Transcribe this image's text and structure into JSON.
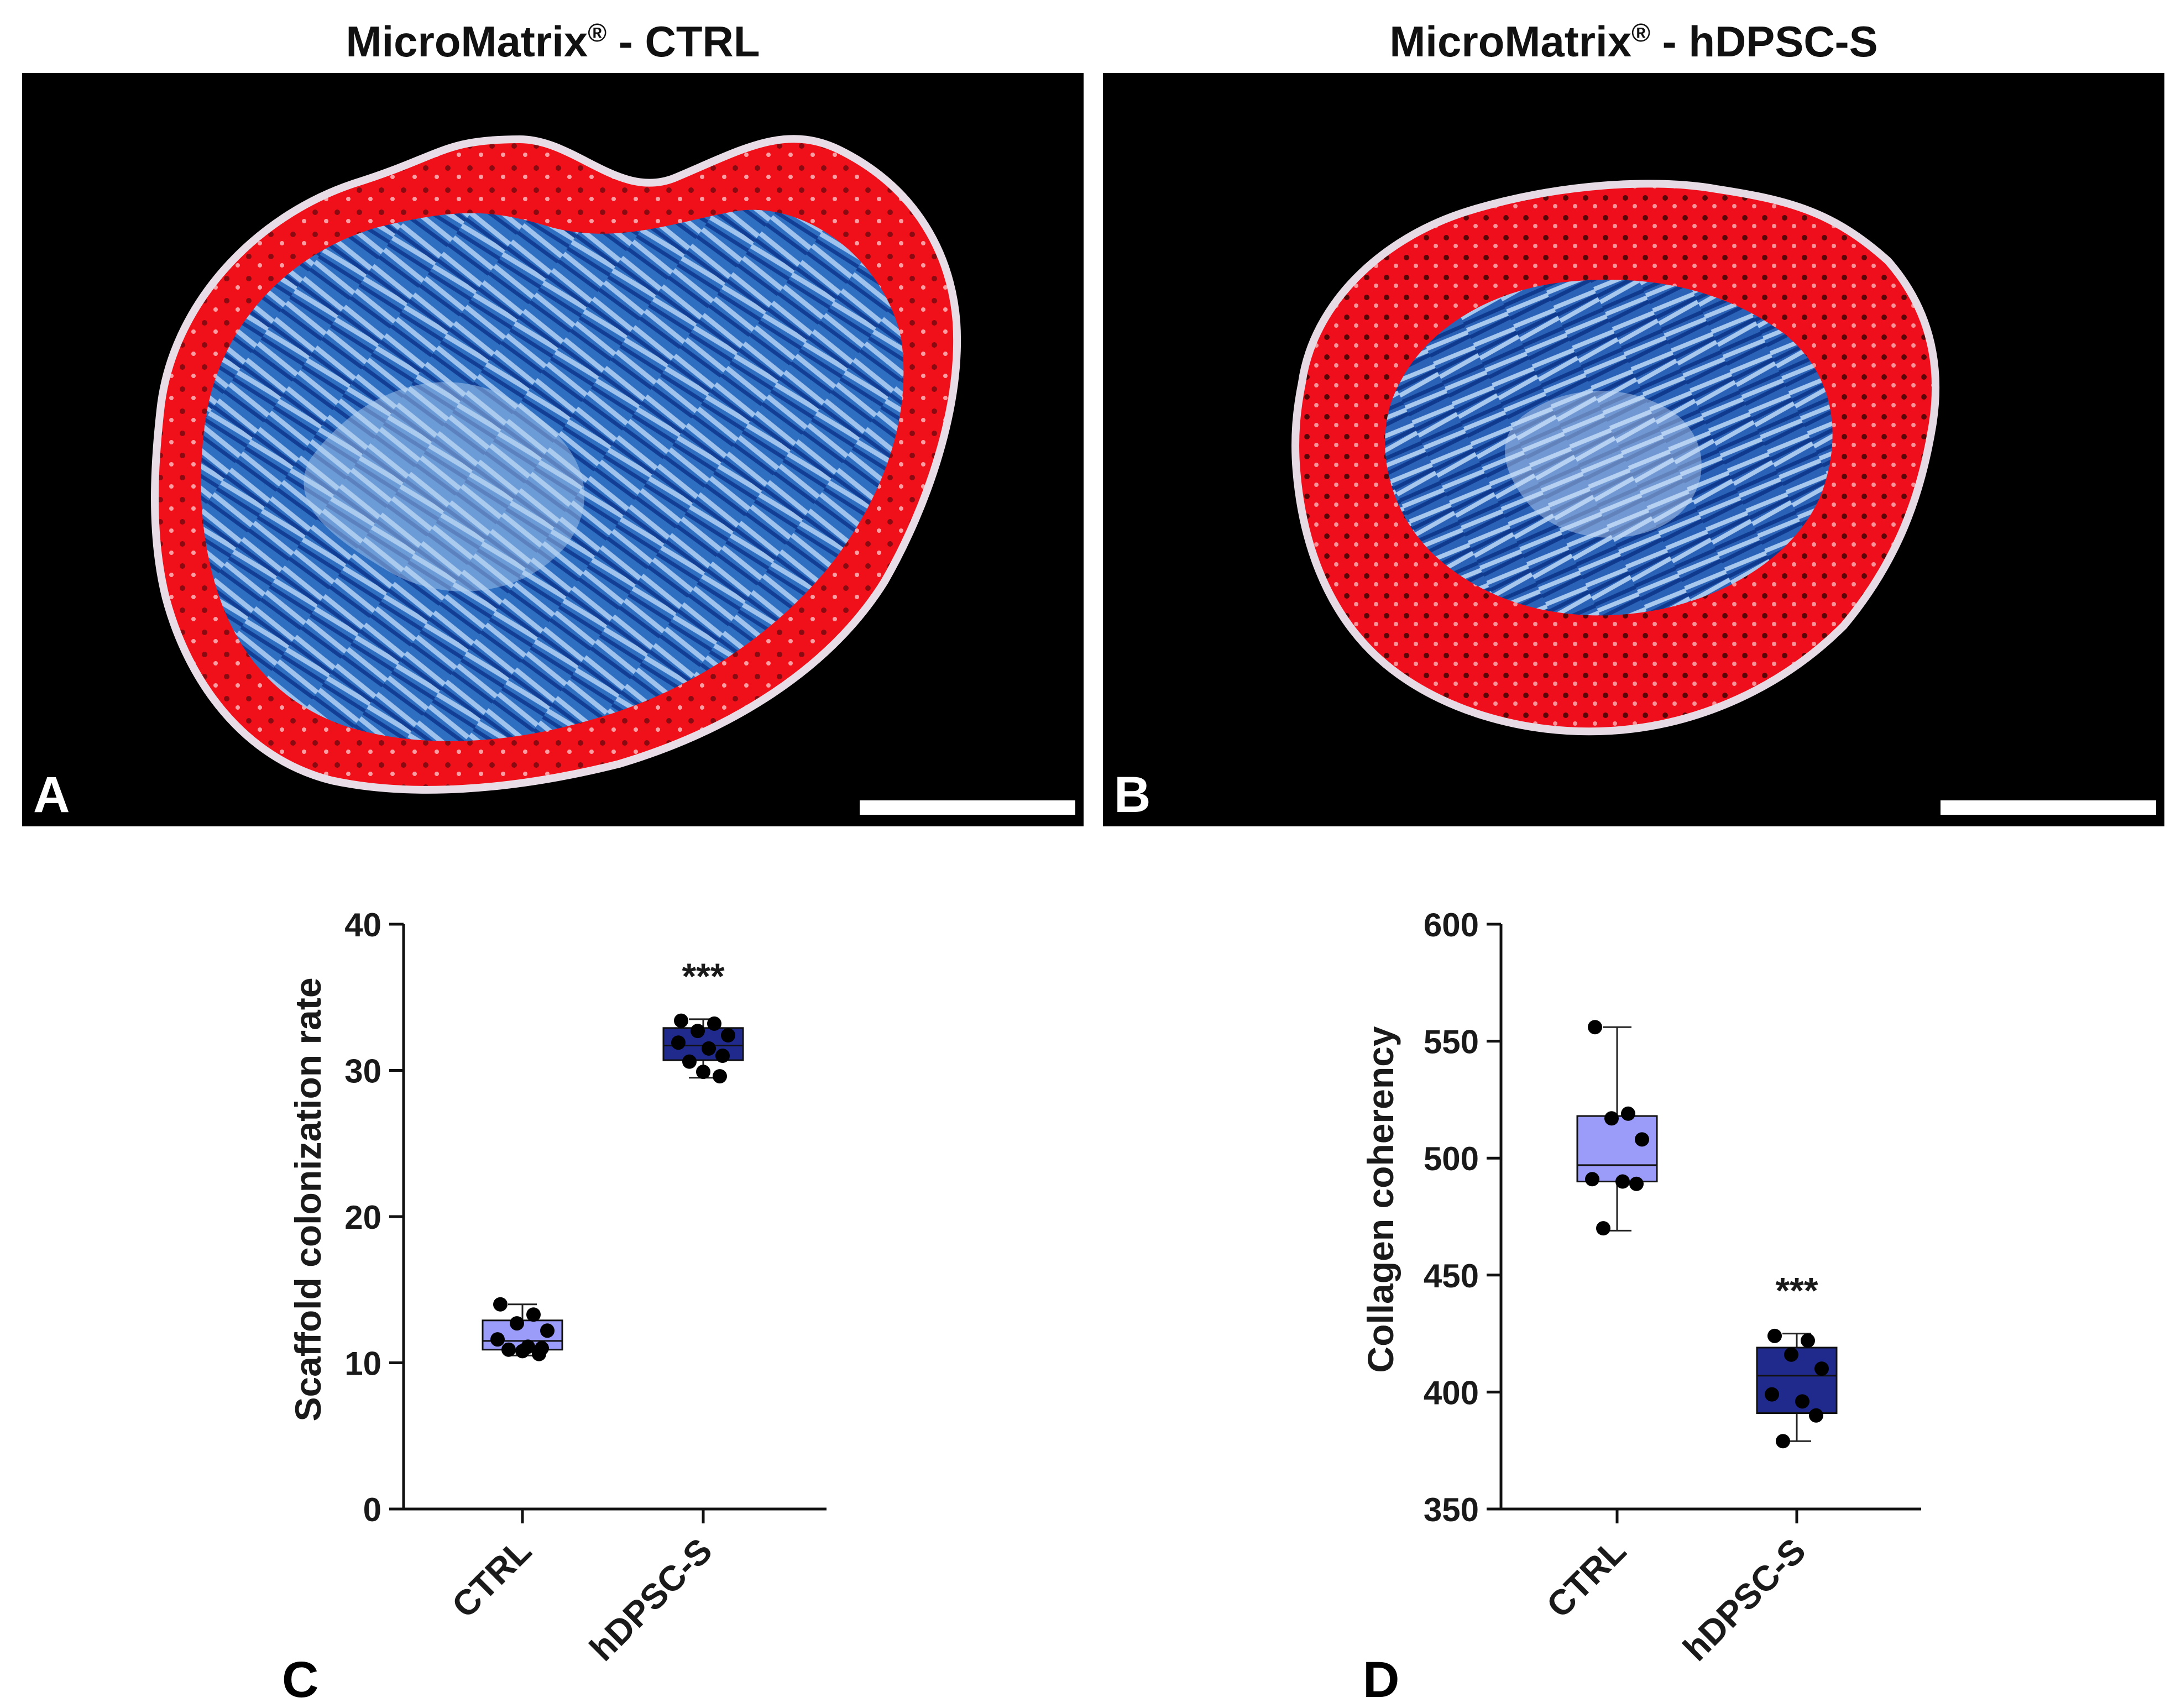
{
  "panels": {
    "A": {
      "letter": "A",
      "title_main": "MicroMatrix",
      "title_reg": "®",
      "title_suffix": " - CTRL"
    },
    "B": {
      "letter": "B",
      "title_main": "MicroMatrix",
      "title_reg": "®",
      "title_suffix": " - hDPSC-S"
    },
    "C": {
      "letter": "C"
    },
    "D": {
      "letter": "D"
    }
  },
  "colors": {
    "ctrl_box": "#9b9cf9",
    "hdpsc_box": "#1f2a8c",
    "points": "#000000",
    "stain_blue": "#2f6fc2",
    "stain_red": "#f0101a",
    "background_micro": "#000000"
  },
  "chart_data": [
    {
      "type": "box",
      "panel": "C",
      "ylabel": "Scaffold colonization rate",
      "xlabel": "",
      "ylim": [
        0,
        40
      ],
      "yticks": [
        0,
        10,
        20,
        30,
        40
      ],
      "categories": [
        "CTRL",
        "hDPSC-S"
      ],
      "series": [
        {
          "name": "CTRL",
          "min": 10.5,
          "q1": 10.9,
          "median": 11.5,
          "q3": 12.9,
          "max": 14.0,
          "points": [
            14.0,
            13.3,
            12.7,
            12.2,
            11.6,
            11.1,
            11.0,
            10.9,
            10.8,
            10.6
          ],
          "annotation": ""
        },
        {
          "name": "hDPSC-S",
          "min": 29.5,
          "q1": 30.7,
          "median": 31.7,
          "q3": 32.9,
          "max": 33.5,
          "points": [
            33.4,
            33.2,
            32.7,
            32.4,
            31.9,
            31.5,
            31.0,
            30.6,
            29.9,
            29.6
          ],
          "annotation": "***"
        }
      ]
    },
    {
      "type": "box",
      "panel": "D",
      "ylabel": "Collagen coherency",
      "xlabel": "",
      "ylim": [
        350,
        600
      ],
      "yticks": [
        350,
        400,
        450,
        500,
        550,
        600
      ],
      "categories": [
        "CTRL",
        "hDPSC-S"
      ],
      "series": [
        {
          "name": "CTRL",
          "min": 469,
          "q1": 490,
          "median": 497,
          "q3": 518,
          "max": 556,
          "points": [
            556,
            519,
            517,
            508,
            491,
            490,
            489,
            470
          ],
          "annotation": ""
        },
        {
          "name": "hDPSC-S",
          "min": 379,
          "q1": 391,
          "median": 407,
          "q3": 419,
          "max": 425,
          "points": [
            424,
            422,
            416,
            410,
            399,
            396,
            390,
            379
          ],
          "annotation": "***"
        }
      ]
    }
  ]
}
